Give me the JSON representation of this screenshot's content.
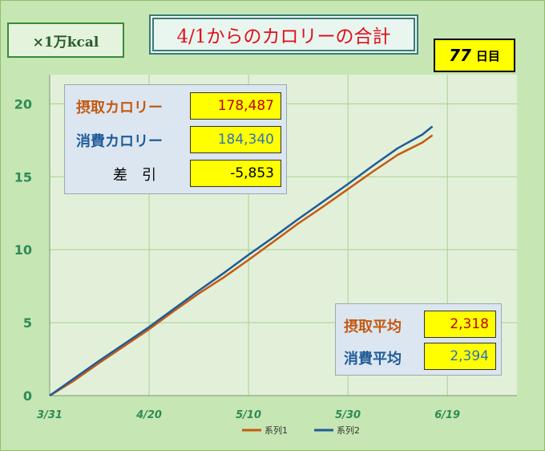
{
  "unit_label": "×1万kcal",
  "title": "4/1からのカロリーの合計",
  "day_count": {
    "number": "77",
    "unit": "日目"
  },
  "totals": {
    "intake": {
      "label": "摂取カロリー",
      "value": "178,487"
    },
    "burn": {
      "label": "消費カロリー",
      "value": "184,340"
    },
    "diff": {
      "label": "差　引",
      "value": "-5,853"
    }
  },
  "averages": {
    "intake": {
      "label": "摂取平均",
      "value": "2,318"
    },
    "burn": {
      "label": "消費平均",
      "value": "2,394"
    }
  },
  "colors": {
    "intake": "#c55a11",
    "burn": "#1f5c99",
    "plot_bg": "#e2f0d9",
    "frame_bg": "#c6e6b3",
    "grid": "#a8cf90"
  },
  "chart_data": {
    "type": "line",
    "x_tick_labels": [
      "3/31",
      "4/20",
      "5/10",
      "5/30",
      "6/19"
    ],
    "x_tick_day_offsets": [
      0,
      20,
      40,
      60,
      80
    ],
    "xlim_day_offsets": [
      0,
      94
    ],
    "ylim": [
      0,
      22
    ],
    "y_ticks": [
      0,
      5,
      10,
      15,
      20
    ],
    "grid": true,
    "legend_position": "bottom",
    "series": [
      {
        "name": "系列1",
        "color": "#c55a11",
        "points": [
          [
            0,
            0
          ],
          [
            5,
            1.05
          ],
          [
            10,
            2.25
          ],
          [
            15,
            3.4
          ],
          [
            20,
            4.55
          ],
          [
            25,
            5.8
          ],
          [
            30,
            7.0
          ],
          [
            35,
            8.1
          ],
          [
            40,
            9.3
          ],
          [
            45,
            10.55
          ],
          [
            50,
            11.8
          ],
          [
            55,
            12.95
          ],
          [
            60,
            14.15
          ],
          [
            65,
            15.35
          ],
          [
            70,
            16.5
          ],
          [
            75,
            17.35
          ],
          [
            77,
            17.85
          ]
        ]
      },
      {
        "name": "系列2",
        "color": "#1f5c99",
        "points": [
          [
            0,
            0
          ],
          [
            5,
            1.2
          ],
          [
            10,
            2.4
          ],
          [
            15,
            3.55
          ],
          [
            20,
            4.7
          ],
          [
            25,
            5.95
          ],
          [
            30,
            7.2
          ],
          [
            35,
            8.4
          ],
          [
            40,
            9.65
          ],
          [
            45,
            10.85
          ],
          [
            50,
            12.1
          ],
          [
            55,
            13.3
          ],
          [
            60,
            14.5
          ],
          [
            65,
            15.75
          ],
          [
            70,
            16.95
          ],
          [
            75,
            17.9
          ],
          [
            77,
            18.45
          ]
        ]
      }
    ]
  }
}
